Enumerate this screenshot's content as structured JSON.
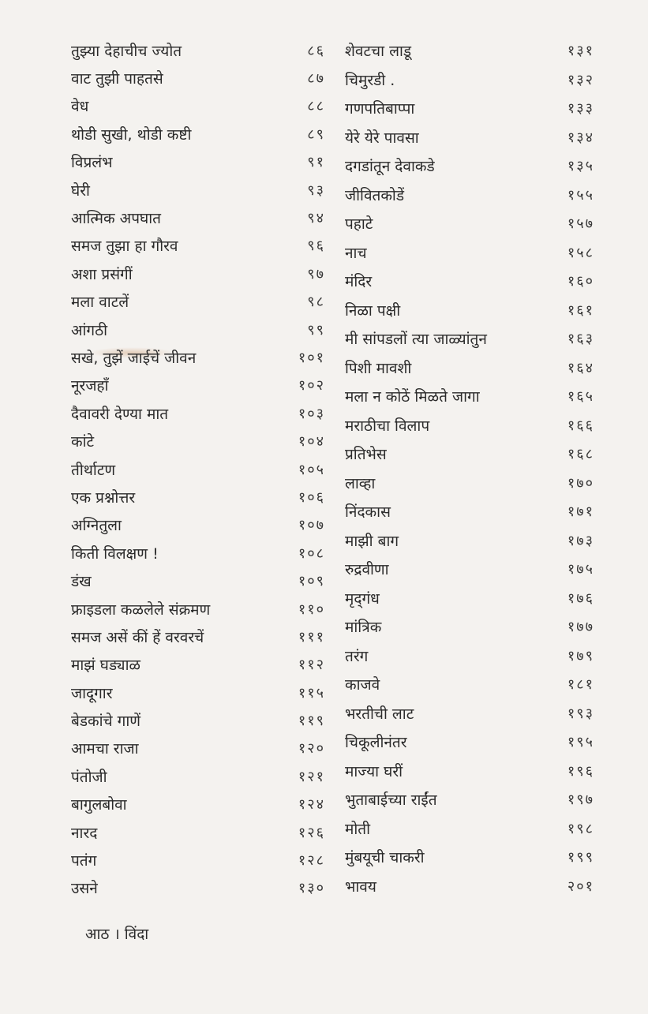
{
  "toc": {
    "left": [
      {
        "title": "तुझ्या देहाचीच ज्योत",
        "page": "८६"
      },
      {
        "title": "वाट तुझी पाहतसे",
        "page": "८७"
      },
      {
        "title": "वेध",
        "page": "८८"
      },
      {
        "title": "थोडी सुखी, थोडी कष्टी",
        "page": "८९"
      },
      {
        "title": "विप्रलंभ",
        "page": "९१"
      },
      {
        "title": "घेरी",
        "page": "९३"
      },
      {
        "title": "आत्मिक अपघात",
        "page": "९४"
      },
      {
        "title": "समज तुझा हा गौरव",
        "page": "९६"
      },
      {
        "title": "अशा प्रसंगीं",
        "page": "९७"
      },
      {
        "title": "मला वाटलें",
        "page": "९८"
      },
      {
        "title": "आंगठी",
        "page": "९९"
      },
      {
        "title": "सखे, तुझें जाईचें जीवन",
        "page": "१०१"
      },
      {
        "title": "नूरजहाँ",
        "page": "१०२"
      },
      {
        "title": "दैवावरी देण्या मात",
        "page": "१०३"
      },
      {
        "title": "कांटे",
        "page": "१०४"
      },
      {
        "title": "तीर्थाटण",
        "page": "१०५"
      },
      {
        "title": "एक प्रश्नोत्तर",
        "page": "१०६"
      },
      {
        "title": "अग्नितुला",
        "page": "१०७"
      },
      {
        "title": "किती विलक्षण !",
        "page": "१०८"
      },
      {
        "title": "डंख",
        "page": "१०९"
      },
      {
        "title": "फ्राइडला कळलेले संक्रमण",
        "page": "११०"
      },
      {
        "title": "समज असें कीं हें वरवरचें",
        "page": "१११"
      },
      {
        "title": "माझं घड्याळ",
        "page": "११२"
      },
      {
        "title": "जादूगार",
        "page": "११५"
      },
      {
        "title": "बेडकांचे गाणें",
        "page": "११९"
      },
      {
        "title": "आमचा राजा",
        "page": "१२०"
      },
      {
        "title": "पंतोजी",
        "page": "१२१"
      },
      {
        "title": "बागुलबोवा",
        "page": "१२४"
      },
      {
        "title": "नारद",
        "page": "१२६"
      },
      {
        "title": "पतंग",
        "page": "१२८"
      },
      {
        "title": "उसने",
        "page": "१३०"
      }
    ],
    "right": [
      {
        "title": "शेवटचा लाडू",
        "page": "१३१"
      },
      {
        "title": "चिमुरडी .",
        "page": "१३२"
      },
      {
        "title": "गणपतिबाप्पा",
        "page": "१३३"
      },
      {
        "title": "येरे येरे पावसा",
        "page": "१३४"
      },
      {
        "title": "दगडांतून देवाकडे",
        "page": "१३५"
      },
      {
        "title": "जीवितकोडें",
        "page": "१५५"
      },
      {
        "title": "पहाटे",
        "page": "१५७"
      },
      {
        "title": "नाच",
        "page": "१५८"
      },
      {
        "title": "मंदिर",
        "page": "१६०"
      },
      {
        "title": "निळा पक्षी",
        "page": "१६१"
      },
      {
        "title": "मी सांपडलों त्या जाळ्यांतुन",
        "page": "१६३"
      },
      {
        "title": "पिशी मावशी",
        "page": "१६४"
      },
      {
        "title": "मला न कोठें मिळते जागा",
        "page": "१६५"
      },
      {
        "title": "मराठीचा विलाप",
        "page": "१६६"
      },
      {
        "title": "प्रतिभेस",
        "page": "१६८"
      },
      {
        "title": "लाव्हा",
        "page": "१७०"
      },
      {
        "title": "निंदकास",
        "page": "१७१"
      },
      {
        "title": "माझी बाग",
        "page": "१७३"
      },
      {
        "title": "रुद्रवीणा",
        "page": "१७५"
      },
      {
        "title": "मृद्‌गंध",
        "page": "१७६"
      },
      {
        "title": "मांत्रिक",
        "page": "१७७"
      },
      {
        "title": "तरंग",
        "page": "१७९"
      },
      {
        "title": "काजवे",
        "page": "१८१"
      },
      {
        "title": "भरतीची लाट",
        "page": "१९३"
      },
      {
        "title": "चिकूलीनंतर",
        "page": "१९५"
      },
      {
        "title": "माज्या घरीं",
        "page": "१९६"
      },
      {
        "title": "भुताबाईच्या राईंत",
        "page": "१९७"
      },
      {
        "title": "मोती",
        "page": "१९८"
      },
      {
        "title": "मुंबयूची चाकरी",
        "page": "१९९"
      },
      {
        "title": "भावय",
        "page": "२०१"
      }
    ]
  },
  "footer": {
    "text": "आठ । विंदा"
  }
}
